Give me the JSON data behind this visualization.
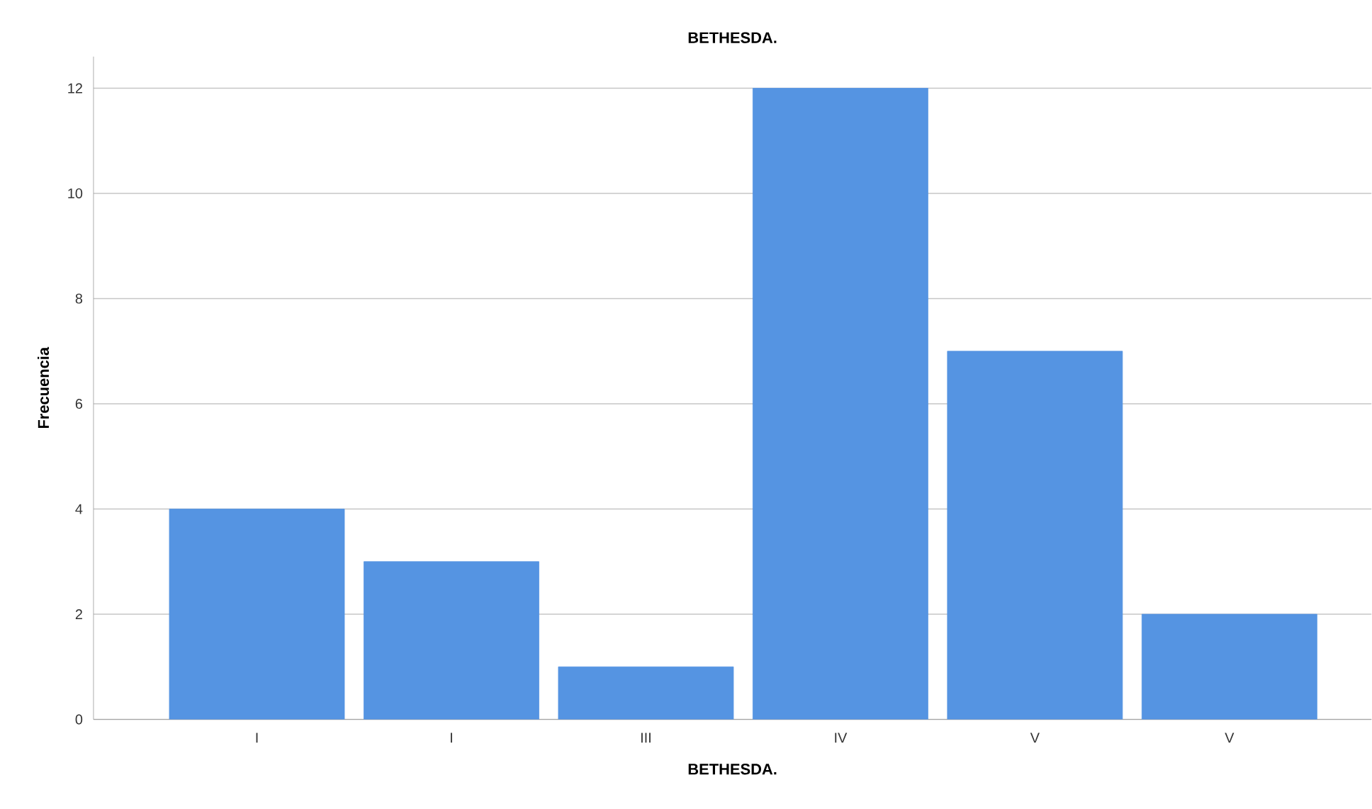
{
  "chart_data": {
    "type": "bar",
    "title": "BETHESDA.",
    "xlabel": "BETHESDA.",
    "ylabel": "Frecuencia",
    "categories": [
      "I",
      "I",
      "III",
      "IV",
      "V",
      "V"
    ],
    "values": [
      4,
      3,
      1,
      12,
      7,
      2
    ],
    "color": "#5594e2",
    "ylim": [
      0,
      12.6
    ],
    "yticks": [
      0,
      2,
      4,
      6,
      8,
      10,
      12
    ],
    "grid": "y"
  }
}
